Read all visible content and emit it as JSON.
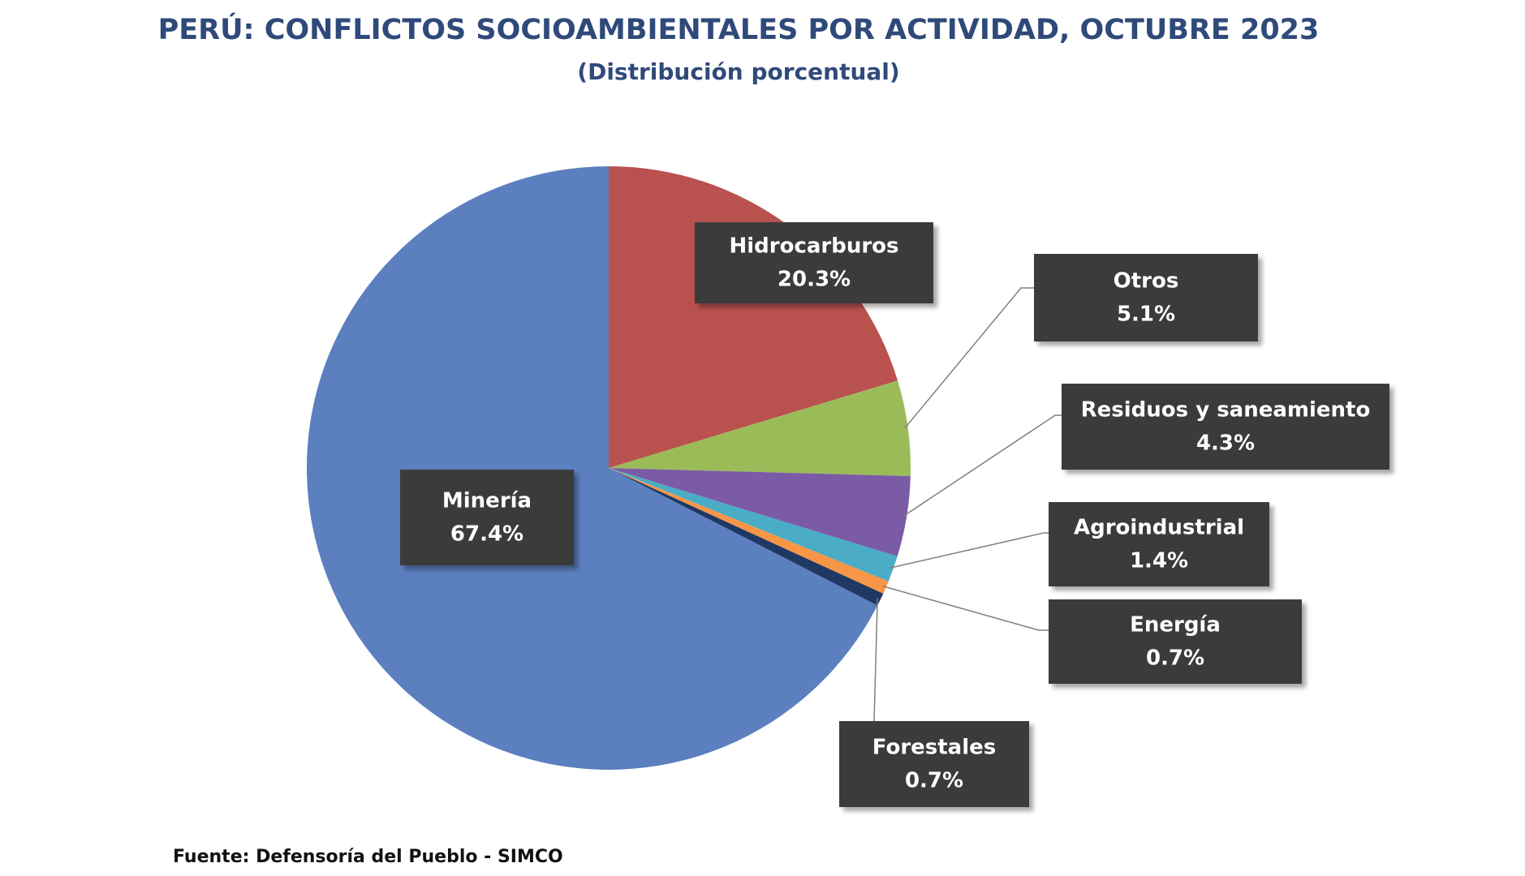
{
  "chart_data": {
    "type": "pie",
    "title": "PERÚ: CONFLICTOS SOCIOAMBIENTALES POR ACTIVIDAD, OCTUBRE 2023",
    "subtitle": "(Distribución porcentual)",
    "source": "Fuente: Defensoría del Pueblo - SIMCO",
    "categories": [
      "Hidrocarburos",
      "Otros",
      "Residuos y saneamiento",
      "Agroindustrial",
      "Energía",
      "Forestales",
      "Minería"
    ],
    "values": [
      20.3,
      5.1,
      4.3,
      1.4,
      0.7,
      0.7,
      67.4
    ],
    "value_labels": [
      "20.3%",
      "5.1%",
      "4.3%",
      "1.4%",
      "0.7%",
      "0.7%",
      "67.4%"
    ],
    "colors": [
      "#b9514e",
      "#9bbb59",
      "#7b5aa6",
      "#4bacc6",
      "#f79646",
      "#1f3864",
      "#5b7fbf"
    ]
  }
}
